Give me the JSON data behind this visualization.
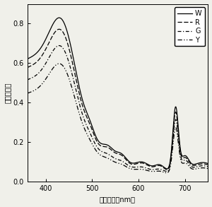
{
  "xlabel": "波　長　（nm）",
  "ylabel": "吸　光　度",
  "xlim": [
    360,
    750
  ],
  "ylim": [
    0,
    0.9
  ],
  "yticks": [
    0,
    0.2,
    0.4,
    0.6,
    0.8
  ],
  "xticks": [
    400,
    500,
    600,
    700
  ],
  "background": "#f0f0ea",
  "curves": {
    "W": {
      "scale": 1.0,
      "pe_scale": 1.0
    },
    "R": {
      "scale": 0.93,
      "pe_scale": 1.05
    },
    "G": {
      "scale": 0.84,
      "pe_scale": 0.7
    },
    "Y": {
      "scale": 0.73,
      "pe_scale": 0.6
    }
  }
}
